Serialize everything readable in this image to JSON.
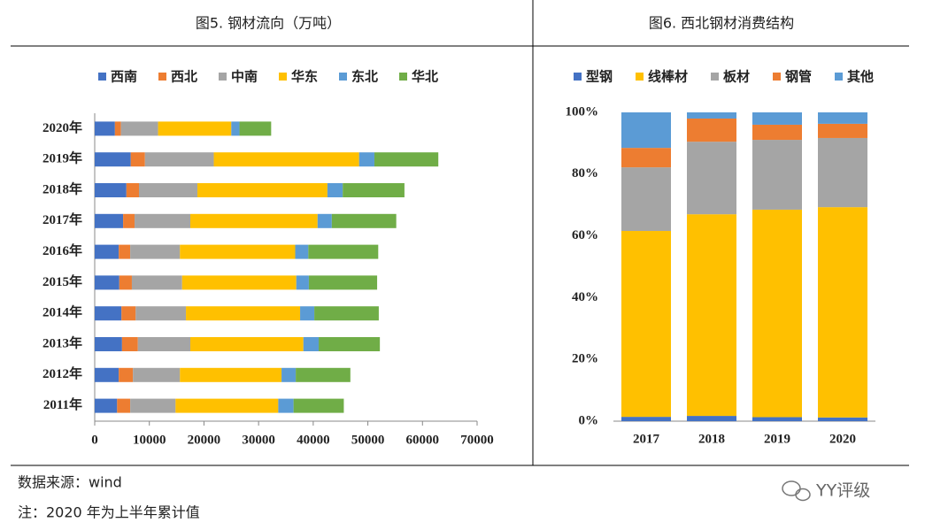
{
  "chart_data": [
    {
      "type": "bar",
      "orientation": "horizontal",
      "stacked": true,
      "title": "图5. 钢材流向（万吨）",
      "categories": [
        "2011年",
        "2012年",
        "2013年",
        "2014年",
        "2015年",
        "2016年",
        "2017年",
        "2018年",
        "2019年",
        "2020年"
      ],
      "series": [
        {
          "name": "西南",
          "color": "#4472c4",
          "values": [
            4100,
            4400,
            5000,
            4900,
            4500,
            4400,
            5200,
            5800,
            6600,
            3700
          ]
        },
        {
          "name": "西北",
          "color": "#ed7d31",
          "values": [
            2400,
            2600,
            2900,
            2600,
            2300,
            2100,
            2100,
            2300,
            2600,
            1100
          ]
        },
        {
          "name": "中南",
          "color": "#a5a5a5",
          "values": [
            8300,
            8600,
            9600,
            9200,
            9200,
            9100,
            10200,
            10700,
            12600,
            6800
          ]
        },
        {
          "name": "华东",
          "color": "#ffc000",
          "values": [
            18800,
            18600,
            20700,
            20900,
            20900,
            21100,
            23300,
            23800,
            26600,
            13400
          ]
        },
        {
          "name": "东北",
          "color": "#5b9bd5",
          "values": [
            2800,
            2600,
            2800,
            2600,
            2300,
            2400,
            2600,
            2800,
            2800,
            1500
          ]
        },
        {
          "name": "华北",
          "color": "#70ad47",
          "values": [
            9200,
            10000,
            11200,
            11800,
            12500,
            12800,
            11800,
            11300,
            11700,
            5800
          ]
        }
      ],
      "xlim": [
        0,
        70000
      ],
      "xticks": [
        0,
        10000,
        20000,
        30000,
        40000,
        50000,
        60000,
        70000
      ],
      "grid": false,
      "legend": "top"
    },
    {
      "type": "bar",
      "orientation": "vertical",
      "stacked": true,
      "title": "图6. 西北钢材消费结构",
      "categories": [
        "2017",
        "2018",
        "2019",
        "2020"
      ],
      "series": [
        {
          "name": "型钢",
          "color": "#4472c4",
          "values": [
            1.4,
            1.7,
            1.3,
            1.2
          ]
        },
        {
          "name": "线棒材",
          "color": "#ffc000",
          "values": [
            60.2,
            65.3,
            67.2,
            68.1
          ]
        },
        {
          "name": "板材",
          "color": "#a5a5a5",
          "values": [
            20.6,
            23.5,
            22.6,
            22.4
          ]
        },
        {
          "name": "钢管",
          "color": "#ed7d31",
          "values": [
            6.3,
            7.5,
            4.9,
            4.6
          ]
        },
        {
          "name": "其他",
          "color": "#5b9bd5",
          "values": [
            11.5,
            2.0,
            4.0,
            3.7
          ]
        }
      ],
      "ylim": [
        0,
        100
      ],
      "yticks": [
        {
          "value": 0,
          "label": "0%"
        },
        {
          "value": 20,
          "label": "20%"
        },
        {
          "value": 40,
          "label": "40%"
        },
        {
          "value": 60,
          "label": "60%"
        },
        {
          "value": 80,
          "label": "80%"
        },
        {
          "value": 100,
          "label": "100%"
        }
      ],
      "grid": false,
      "legend": "top"
    }
  ],
  "source": "数据来源：wind",
  "note": "注：2020 年为上半年累计值",
  "watermark": "YY评级"
}
